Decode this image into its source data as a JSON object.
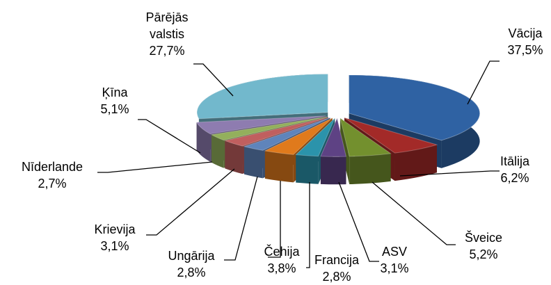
{
  "chart_data": {
    "type": "pie",
    "categories": [
      "Vācija",
      "Itālija",
      "Šveice",
      "ASV",
      "Francija",
      "Čehija",
      "Ungārija",
      "Krievija",
      "Nīderlande",
      "Ķīna",
      "Pārējās valstis"
    ],
    "values": [
      37.5,
      6.2,
      5.2,
      3.1,
      2.8,
      3.8,
      2.8,
      3.1,
      2.7,
      5.1,
      27.7
    ],
    "value_labels": [
      "37,5%",
      "6,2%",
      "5,2%",
      "3,1%",
      "2,8%",
      "3,8%",
      "2,8%",
      "3,1%",
      "2,7%",
      "5,1%",
      "27,7%"
    ],
    "colors": [
      "#2f62a3",
      "#a32a28",
      "#73902e",
      "#5e4284",
      "#2b93ab",
      "#e07a1c",
      "#5f84bb",
      "#c05f5f",
      "#93b05c",
      "#8e7cb0",
      "#72b8cc"
    ]
  }
}
